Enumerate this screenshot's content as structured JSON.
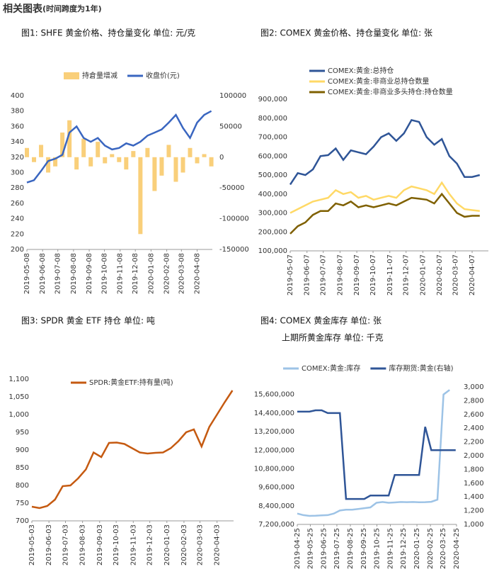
{
  "heading": {
    "title": "相关图表",
    "note": "(时间跨度为1年)"
  },
  "chart_data": [
    {
      "type": "combo",
      "title": "图1: SHFE 黄金价格、持仓量变化   单位: 元/克",
      "x": [
        "2019-05-08",
        "2019-05-22",
        "2019-06-05",
        "2019-06-19",
        "2019-07-03",
        "2019-07-17",
        "2019-07-31",
        "2019-08-14",
        "2019-08-28",
        "2019-09-11",
        "2019-09-25",
        "2019-10-09",
        "2019-10-23",
        "2019-11-06",
        "2019-11-20",
        "2019-12-04",
        "2019-12-18",
        "2020-01-01",
        "2020-01-15",
        "2020-01-29",
        "2020-02-12",
        "2020-02-26",
        "2020-03-11",
        "2020-03-25",
        "2020-04-08",
        "2020-04-22",
        "2020-05-06"
      ],
      "series": [
        {
          "name": "持倉量增减",
          "type": "bar",
          "axis": "y2",
          "color": "#f9cf7a",
          "values": [
            15000,
            -8000,
            20000,
            -25000,
            -15000,
            40000,
            60000,
            -20000,
            30000,
            -15000,
            25000,
            -10000,
            5000,
            -8000,
            -20000,
            10000,
            -125000,
            15000,
            -55000,
            -30000,
            20000,
            -40000,
            -25000,
            15000,
            -10000,
            5000,
            -15000
          ]
        },
        {
          "name": "收盘价(元)",
          "type": "line",
          "color": "#3a66c0",
          "values": [
            287,
            290,
            302,
            315,
            318,
            323,
            352,
            360,
            345,
            340,
            345,
            335,
            330,
            332,
            338,
            335,
            340,
            348,
            352,
            356,
            365,
            375,
            358,
            345,
            365,
            375,
            380
          ]
        }
      ],
      "xlim": [
        "2019-05-08",
        "2020-05-08"
      ],
      "xticks": [
        "2019-05-08",
        "2019-06-08",
        "2019-07-08",
        "2019-08-08",
        "2019-09-08",
        "2019-10-08",
        "2019-11-08",
        "2019-12-08",
        "2020-01-08",
        "2020-02-08",
        "2020-03-08",
        "2020-04-08"
      ],
      "ylim": [
        200,
        400
      ],
      "yticks": [
        200,
        220,
        240,
        260,
        280,
        300,
        320,
        340,
        360,
        380,
        400
      ],
      "y2lim": [
        -150000,
        100000
      ],
      "y2ticks": [
        -150000,
        -100000,
        -50000,
        0,
        50000,
        100000
      ],
      "grid": false,
      "legend": "top"
    },
    {
      "type": "line",
      "title": "图2: COMEX 黄金价格、持仓量变化   单位: 张",
      "x": [
        "2019-05-07",
        "2019-05-21",
        "2019-06-04",
        "2019-06-18",
        "2019-07-02",
        "2019-07-16",
        "2019-07-30",
        "2019-08-13",
        "2019-08-27",
        "2019-09-10",
        "2019-09-24",
        "2019-10-08",
        "2019-10-22",
        "2019-11-05",
        "2019-11-19",
        "2019-12-03",
        "2019-12-17",
        "2019-12-31",
        "2020-01-14",
        "2020-01-28",
        "2020-02-11",
        "2020-02-25",
        "2020-03-10",
        "2020-03-24",
        "2020-04-07",
        "2020-04-21"
      ],
      "series": [
        {
          "name": "COMEX:黄金:总持仓",
          "color": "#2f5597",
          "values": [
            450000,
            510000,
            500000,
            530000,
            600000,
            605000,
            640000,
            580000,
            630000,
            620000,
            610000,
            650000,
            700000,
            720000,
            680000,
            720000,
            790000,
            780000,
            700000,
            660000,
            690000,
            600000,
            560000,
            490000,
            490000,
            500000
          ]
        },
        {
          "name": "COMEX:黄金:非商业总持仓数量",
          "color": "#ffd966",
          "values": [
            300000,
            320000,
            340000,
            360000,
            370000,
            380000,
            420000,
            400000,
            410000,
            380000,
            390000,
            370000,
            380000,
            390000,
            380000,
            420000,
            440000,
            430000,
            420000,
            400000,
            460000,
            400000,
            350000,
            320000,
            315000,
            310000
          ]
        },
        {
          "name": "COMEX:黄金:非商业多头持仓:持仓数量",
          "color": "#7f6000",
          "values": [
            190000,
            230000,
            250000,
            290000,
            310000,
            310000,
            350000,
            340000,
            360000,
            330000,
            340000,
            330000,
            340000,
            350000,
            340000,
            360000,
            380000,
            375000,
            370000,
            350000,
            400000,
            350000,
            300000,
            280000,
            285000,
            285000
          ]
        }
      ],
      "xlim": [
        "2019-05-07",
        "2020-05-07"
      ],
      "xticks": [
        "2019-05-07",
        "2019-06-07",
        "2019-07-07",
        "2019-08-07",
        "2019-09-07",
        "2019-10-07",
        "2019-11-07",
        "2019-12-07",
        "2020-01-07",
        "2020-02-07",
        "2020-03-07",
        "2020-04-07"
      ],
      "ylim": [
        100000,
        900000
      ],
      "yticks": [
        {
          "value": 100000,
          "label": "100,000"
        },
        {
          "value": 200000,
          "label": "200,000"
        },
        {
          "value": 300000,
          "label": "300,000"
        },
        {
          "value": 400000,
          "label": "400,000"
        },
        {
          "value": 500000,
          "label": "500,000"
        },
        {
          "value": 600000,
          "label": "600,000"
        },
        {
          "value": 700000,
          "label": "700,000"
        },
        {
          "value": 800000,
          "label": "800,000"
        },
        {
          "value": 900000,
          "label": "900,000"
        }
      ],
      "grid": false,
      "legend": "top-left"
    },
    {
      "type": "line",
      "title": "图3: SPDR 黄金 ETF 持仓   单位: 吨",
      "x": [
        "2019-05-03",
        "2019-05-17",
        "2019-05-31",
        "2019-06-14",
        "2019-06-28",
        "2019-07-12",
        "2019-07-26",
        "2019-08-09",
        "2019-08-23",
        "2019-09-06",
        "2019-09-20",
        "2019-10-04",
        "2019-10-18",
        "2019-11-01",
        "2019-11-15",
        "2019-11-29",
        "2019-12-13",
        "2019-12-27",
        "2020-01-10",
        "2020-01-24",
        "2020-02-07",
        "2020-02-21",
        "2020-03-06",
        "2020-03-20",
        "2020-04-03",
        "2020-04-17",
        "2020-05-01"
      ],
      "series": [
        {
          "name": "SPDR:黄金ETF:持有量(吨)",
          "color": "#c55a11",
          "values": [
            740,
            736,
            742,
            760,
            798,
            800,
            820,
            845,
            893,
            880,
            920,
            921,
            917,
            905,
            893,
            890,
            892,
            893,
            905,
            925,
            950,
            958,
            910,
            965,
            1000,
            1035,
            1068
          ]
        }
      ],
      "xlim": [
        "2019-05-03",
        "2020-05-03"
      ],
      "xticks": [
        "2019-05-03",
        "2019-06-03",
        "2019-07-03",
        "2019-08-03",
        "2019-09-03",
        "2019-10-03",
        "2019-11-03",
        "2019-12-03",
        "2020-01-03",
        "2020-02-03",
        "2020-03-03",
        "2020-04-03"
      ],
      "ylim": [
        700,
        1100
      ],
      "yticks": [
        700,
        750,
        800,
        850,
        900,
        950,
        {
          "value": 1000,
          "label": "1,000"
        },
        {
          "value": 1050,
          "label": "1,050"
        },
        {
          "value": 1100,
          "label": "1,100"
        }
      ],
      "grid": false,
      "legend": "top"
    },
    {
      "type": "line",
      "title": "图4: COMEX 黄金库存   单位: 张",
      "subtitle": "上期所黄金库存   单位: 千克",
      "x": [
        "2019-04-25",
        "2019-05-09",
        "2019-05-23",
        "2019-06-06",
        "2019-06-20",
        "2019-07-04",
        "2019-07-18",
        "2019-08-01",
        "2019-08-15",
        "2019-08-29",
        "2019-09-12",
        "2019-09-26",
        "2019-10-10",
        "2019-10-24",
        "2019-11-07",
        "2019-11-21",
        "2019-12-05",
        "2019-12-19",
        "2020-01-02",
        "2020-01-16",
        "2020-01-30",
        "2020-02-13",
        "2020-02-27",
        "2020-03-12",
        "2020-03-26",
        "2020-04-09",
        "2020-04-23"
      ],
      "series": [
        {
          "name": "COMEX:黄金:库存",
          "color": "#9dc3e6",
          "values": [
            7900000,
            7800000,
            7750000,
            7760000,
            7780000,
            7800000,
            7900000,
            8100000,
            8150000,
            8150000,
            8200000,
            8250000,
            8300000,
            8600000,
            8650000,
            8600000,
            8620000,
            8650000,
            8640000,
            8650000,
            8630000,
            8640000,
            8660000,
            8800000,
            15600000,
            15900000,
            null
          ]
        },
        {
          "name": "库存期货:黄金(右轴)",
          "axis": "y2",
          "color": "#2f5597",
          "values": [
            2640,
            2640,
            2640,
            2660,
            2660,
            2620,
            2620,
            2620,
            1370,
            1370,
            1370,
            1370,
            1420,
            1420,
            1420,
            1420,
            1720,
            1720,
            1720,
            1720,
            1720,
            2420,
            2080,
            2080,
            2080,
            2080,
            2080
          ]
        }
      ],
      "xlim": [
        "2019-04-25",
        "2020-04-25"
      ],
      "xticks": [
        "2019-04-25",
        "2019-05-25",
        "2019-06-25",
        "2019-07-25",
        "2019-08-25",
        "2019-09-25",
        "2019-10-25",
        "2019-11-25",
        "2019-12-25",
        "2020-01-25",
        "2020-02-25",
        "2020-03-25",
        "2020-04-25"
      ],
      "ylim": [
        7200000,
        16000000
      ],
      "yticks": [
        {
          "value": 7200000,
          "label": "7,200,000"
        },
        {
          "value": 8400000,
          "label": "8,400,000"
        },
        {
          "value": 9600000,
          "label": "9,600,000"
        },
        {
          "value": 10800000,
          "label": "10,800,000"
        },
        {
          "value": 12000000,
          "label": "12,000,000"
        },
        {
          "value": 13200000,
          "label": "13,200,000"
        },
        {
          "value": 14400000,
          "label": "14,400,000"
        },
        {
          "value": 15600000,
          "label": "15,600,000"
        }
      ],
      "y2lim": [
        1000,
        3000
      ],
      "y2ticks": [
        {
          "value": 1000,
          "label": "1,000"
        },
        {
          "value": 1200,
          "label": "1,200"
        },
        {
          "value": 1400,
          "label": "1,400"
        },
        {
          "value": 1600,
          "label": "1,600"
        },
        {
          "value": 1800,
          "label": "1,800"
        },
        {
          "value": 2000,
          "label": "2,000"
        },
        {
          "value": 2200,
          "label": "2,200"
        },
        {
          "value": 2400,
          "label": "2,400"
        },
        {
          "value": 2600,
          "label": "2,600"
        },
        {
          "value": 2800,
          "label": "2,800"
        },
        {
          "value": 3000,
          "label": "3,000"
        }
      ],
      "grid": false,
      "legend": "top"
    }
  ]
}
